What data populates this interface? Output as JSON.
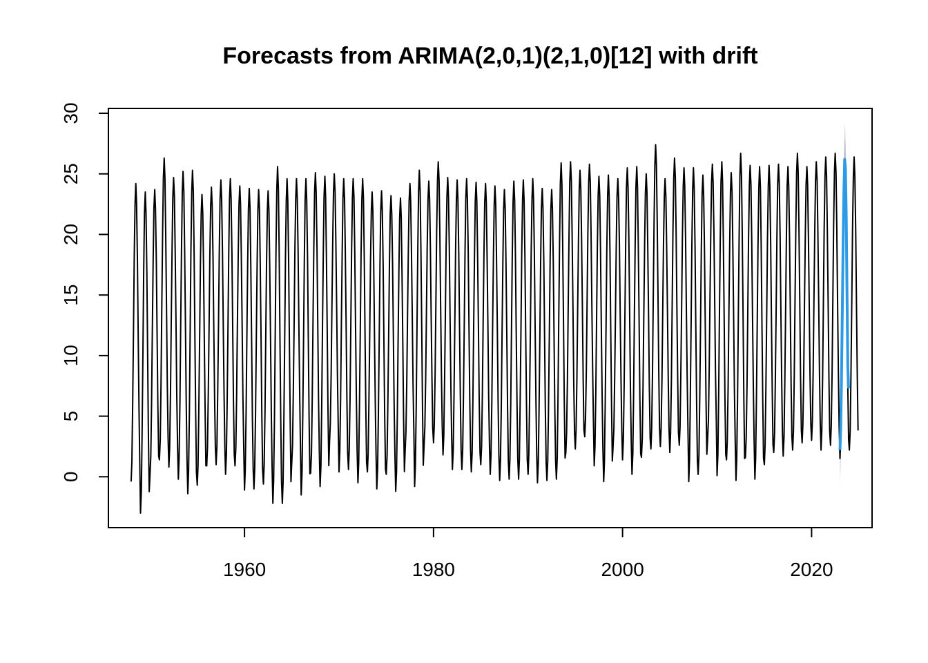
{
  "chart_data": {
    "type": "line",
    "title": "Forecasts from ARIMA(2,0,1)(2,1,0)[12] with drift",
    "xlabel": "",
    "ylabel": "",
    "xlim": [
      1945.6,
      2026.4
    ],
    "ylim": [
      -4.2,
      30.4
    ],
    "x_ticks": [
      1960,
      1980,
      2000,
      2020
    ],
    "y_ticks": [
      0,
      5,
      10,
      15,
      20,
      25,
      30
    ],
    "grid": false,
    "legend": "none",
    "colors": {
      "history": "#000000",
      "forecast": "#2d9ae6",
      "band_outer": "#dcdce8",
      "band_inner": "#b9b9d0"
    },
    "history": {
      "start_year": 1948,
      "frequency": 12,
      "annual_peaks": [
        24.2,
        23.5,
        23.7,
        26.3,
        24.7,
        25.2,
        25.3,
        23.3,
        23.9,
        24.5,
        24.6,
        24.0,
        23.8,
        23.7,
        23.6,
        25.6,
        24.6,
        24.6,
        24.6,
        25.1,
        24.8,
        25.0,
        24.6,
        24.6,
        24.6,
        23.5,
        23.6,
        23.2,
        23.0,
        24.2,
        25.3,
        24.4,
        26.0,
        24.7,
        24.5,
        24.6,
        24.3,
        24.2,
        24.0,
        23.7,
        24.4,
        24.5,
        24.6,
        23.8,
        23.7,
        25.9,
        26.0,
        25.3,
        25.8,
        24.8,
        24.9,
        24.6,
        25.5,
        25.6,
        25.0,
        27.4,
        24.6,
        26.3,
        25.5,
        25.5,
        24.9,
        25.8,
        26.0,
        25.1,
        26.7,
        25.7,
        25.6,
        25.7,
        25.8,
        25.6,
        26.7,
        25.6,
        26.0,
        26.4,
        26.7,
        25.0,
        26.4
      ],
      "annual_troughs": [
        -0.4,
        -3.0,
        0.1,
        1.4,
        0.8,
        -0.2,
        -1.4,
        -0.7,
        0.9,
        1.0,
        0.2,
        0.9,
        -1.1,
        -1.0,
        -0.6,
        -2.2,
        -2.2,
        1.1,
        -1.5,
        0.3,
        -0.8,
        2.9,
        0.4,
        0.6,
        -0.5,
        0.4,
        -1.0,
        0.2,
        -1.2,
        2.2,
        -0.8,
        2.6,
        2.8,
        1.8,
        0.6,
        0.6,
        0.4,
        1.0,
        0.2,
        -0.3,
        -0.2,
        -0.2,
        0.2,
        -0.5,
        -0.3,
        -0.2,
        2.0,
        2.3,
        3.3,
        0.9,
        -0.4,
        2.5,
        1.4,
        0.2,
        1.6,
        2.3,
        2.5,
        2.0,
        2.6,
        -0.4,
        0.2,
        3.1,
        0.1,
        1.4,
        -0.3,
        1.6,
        -0.2,
        1.0,
        2.0,
        1.7,
        2.2,
        2.8,
        3.0,
        2.2,
        2.6,
        1.5,
        2.2
      ]
    },
    "forecast": {
      "start": 2023.0,
      "frequency": 12,
      "values": [
        2.2,
        4.0,
        8.0,
        13.7,
        19.0,
        23.5,
        26.2,
        25.5,
        21.6,
        15.2,
        9.0,
        7.3
      ],
      "lower_95": [
        -0.8,
        0.9,
        4.9,
        10.6,
        15.9,
        20.4,
        23.0,
        22.3,
        18.4,
        12.0,
        5.8,
        4.1
      ],
      "upper_95": [
        5.2,
        7.1,
        11.1,
        16.8,
        22.1,
        26.6,
        29.2,
        28.6,
        24.8,
        18.4,
        12.2,
        10.5
      ],
      "lower_80": [
        0.2,
        2.0,
        6.0,
        11.7,
        17.0,
        21.5,
        24.1,
        23.4,
        19.5,
        13.1,
        6.9,
        5.2
      ],
      "upper_80": [
        4.2,
        6.0,
        10.0,
        15.7,
        21.0,
        25.5,
        28.1,
        27.5,
        23.7,
        17.3,
        11.1,
        9.4
      ]
    }
  }
}
